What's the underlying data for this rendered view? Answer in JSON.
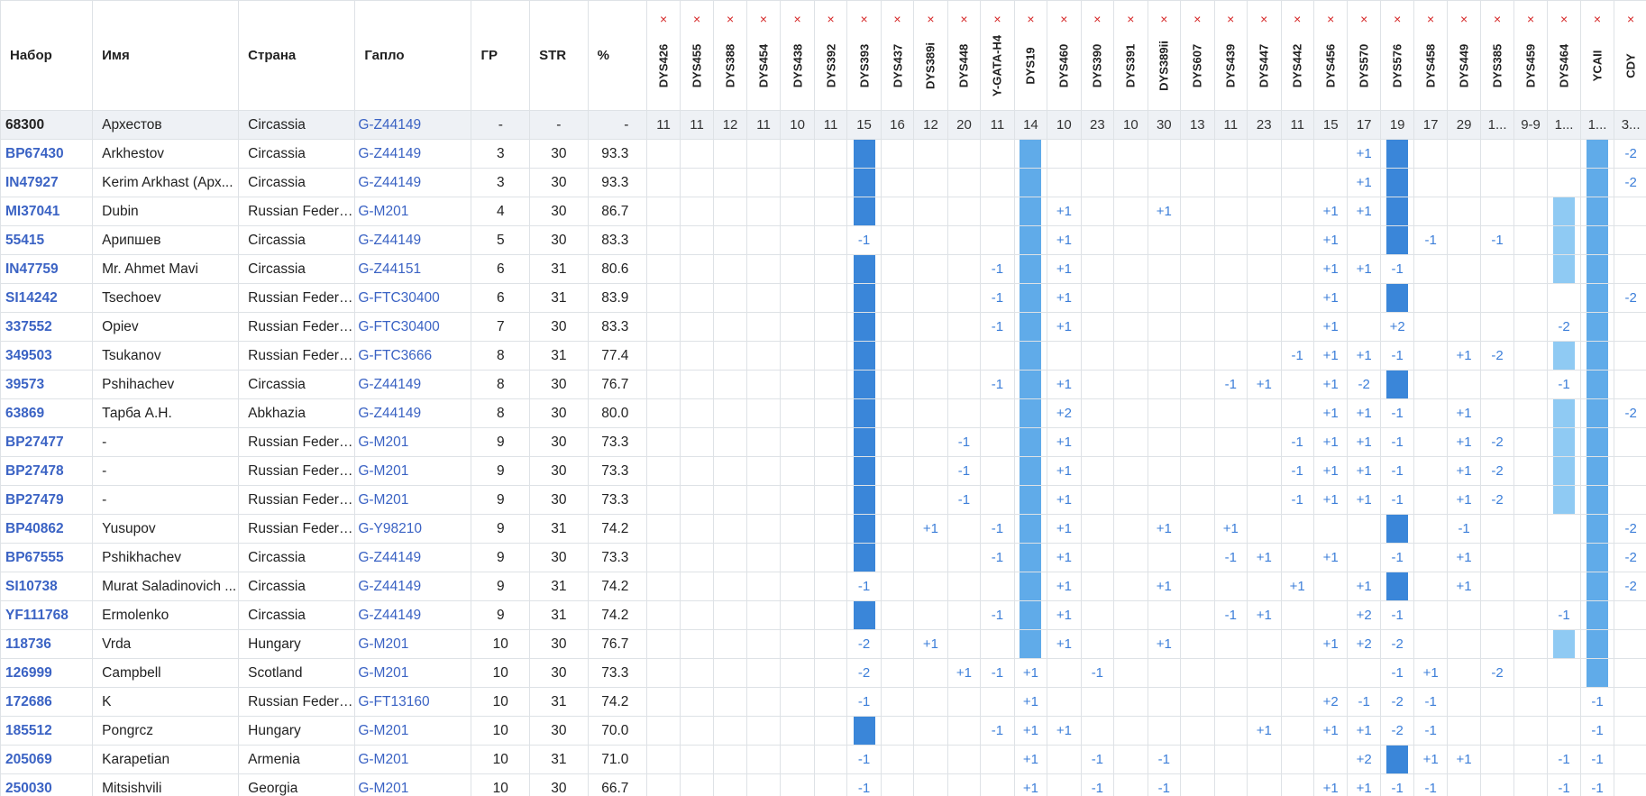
{
  "headers": {
    "kit": "Набор",
    "name": "Имя",
    "country": "Страна",
    "haplo": "Гапло",
    "gd": "ГР",
    "str": "STR",
    "pct": "%"
  },
  "delete_glyph": "×",
  "markers": [
    "DYS426",
    "DYS455",
    "DYS388",
    "DYS454",
    "DYS438",
    "DYS392",
    "DYS393",
    "DYS437",
    "DYS389i",
    "DYS448",
    "Y-GATA-H4",
    "DYS19",
    "DYS460",
    "DYS390",
    "DYS391",
    "DYS389ii",
    "DYS607",
    "DYS439",
    "DYS447",
    "DYS442",
    "DYS456",
    "DYS570",
    "DYS576",
    "DYS458",
    "DYS449",
    "DYS385",
    "DYS459",
    "DYS464",
    "YCAII",
    "CDY"
  ],
  "highlight_colors": {
    "dark": "#3a86d9",
    "mid": "#60abe9",
    "light": "#8fcaf3",
    "ref_row_bg": "#eef1f5",
    "link": "#3b63c4",
    "delete": "#d62828"
  },
  "reference": {
    "kit": "68300",
    "name": "Архестов",
    "country": "Circassia",
    "haplo": "G-Z44149",
    "gd": "-",
    "str": "-",
    "pct": "-",
    "values": [
      "11",
      "11",
      "12",
      "11",
      "10",
      "11",
      "15",
      "16",
      "12",
      "20",
      "11",
      "14",
      "10",
      "23",
      "10",
      "30",
      "13",
      "11",
      "23",
      "11",
      "15",
      "17",
      "19",
      "17",
      "29",
      "1...",
      "9-9",
      "1...",
      "1...",
      "3..."
    ]
  },
  "rows": [
    {
      "kit": "BP67430",
      "name": "Arkhestov",
      "country": "Circassia",
      "haplo": "G-Z44149",
      "gd": "3",
      "str": "30",
      "pct": "93.3",
      "diffs": {
        "DYS570": "+1",
        "CDY": "-2"
      },
      "bars": {
        "DYS393": "dark",
        "DYS19": "mid",
        "DYS576": "dark",
        "YCAII": "mid"
      }
    },
    {
      "kit": "IN47927",
      "name": "Kerim Arkhast (Арх...",
      "country": "Circassia",
      "haplo": "G-Z44149",
      "gd": "3",
      "str": "30",
      "pct": "93.3",
      "diffs": {
        "DYS570": "+1",
        "CDY": "-2"
      },
      "bars": {
        "DYS393": "dark",
        "DYS19": "mid",
        "DYS576": "dark",
        "YCAII": "mid"
      }
    },
    {
      "kit": "MI37041",
      "name": "Dubin",
      "country": "Russian Federa...",
      "haplo": "G-M201",
      "gd": "4",
      "str": "30",
      "pct": "86.7",
      "diffs": {
        "DYS460": "+1",
        "DYS389ii": "+1",
        "DYS456": "+1",
        "DYS570": "+1"
      },
      "bars": {
        "DYS393": "dark",
        "DYS19": "mid",
        "DYS576": "dark",
        "DYS464": "light",
        "YCAII": "mid"
      }
    },
    {
      "kit": "55415",
      "name": "Арипшев",
      "country": "Circassia",
      "haplo": "G-Z44149",
      "gd": "5",
      "str": "30",
      "pct": "83.3",
      "diffs": {
        "DYS393": "-1",
        "DYS460": "+1",
        "DYS456": "+1",
        "DYS458": "-1",
        "DYS385": "-1"
      },
      "bars": {
        "DYS19": "mid",
        "DYS576": "dark",
        "DYS464": "light",
        "YCAII": "mid"
      }
    },
    {
      "kit": "IN47759",
      "name": "Mr. Ahmet Mavi",
      "country": "Circassia",
      "haplo": "G-Z44151",
      "gd": "6",
      "str": "31",
      "pct": "80.6",
      "diffs": {
        "Y-GATA-H4": "-1",
        "DYS460": "+1",
        "DYS456": "+1",
        "DYS570": "+1",
        "DYS576": "-1"
      },
      "bars": {
        "DYS393": "dark",
        "DYS19": "mid",
        "DYS464": "light",
        "YCAII": "mid"
      }
    },
    {
      "kit": "SI14242",
      "name": "Tsechoev",
      "country": "Russian Federa...",
      "haplo": "G-FTC30400",
      "gd": "6",
      "str": "31",
      "pct": "83.9",
      "diffs": {
        "Y-GATA-H4": "-1",
        "DYS460": "+1",
        "DYS456": "+1",
        "CDY": "-2"
      },
      "bars": {
        "DYS393": "dark",
        "DYS19": "mid",
        "DYS576": "dark",
        "YCAII": "mid"
      }
    },
    {
      "kit": "337552",
      "name": "Opiev",
      "country": "Russian Federa...",
      "haplo": "G-FTC30400",
      "gd": "7",
      "str": "30",
      "pct": "83.3",
      "diffs": {
        "Y-GATA-H4": "-1",
        "DYS460": "+1",
        "DYS456": "+1",
        "DYS576": "+2",
        "DYS464": "-2"
      },
      "bars": {
        "DYS393": "dark",
        "DYS19": "mid",
        "YCAII": "mid"
      }
    },
    {
      "kit": "349503",
      "name": "Tsukanov",
      "country": "Russian Federa...",
      "haplo": "G-FTC3666",
      "gd": "8",
      "str": "31",
      "pct": "77.4",
      "diffs": {
        "DYS442": "-1",
        "DYS456": "+1",
        "DYS570": "+1",
        "DYS576": "-1",
        "DYS449": "+1",
        "DYS385": "-2"
      },
      "bars": {
        "DYS393": "dark",
        "DYS19": "mid",
        "DYS464": "light",
        "YCAII": "mid"
      }
    },
    {
      "kit": "39573",
      "name": "Pshihachev",
      "country": "Circassia",
      "haplo": "G-Z44149",
      "gd": "8",
      "str": "30",
      "pct": "76.7",
      "diffs": {
        "Y-GATA-H4": "-1",
        "DYS460": "+1",
        "DYS439": "-1",
        "DYS447": "+1",
        "DYS456": "+1",
        "DYS570": "-2",
        "DYS464": "-1"
      },
      "bars": {
        "DYS393": "dark",
        "DYS19": "mid",
        "DYS576": "dark",
        "YCAII": "mid"
      }
    },
    {
      "kit": "63869",
      "name": "Тарба А.Н.",
      "country": "Abkhazia",
      "haplo": "G-Z44149",
      "gd": "8",
      "str": "30",
      "pct": "80.0",
      "diffs": {
        "DYS460": "+2",
        "DYS456": "+1",
        "DYS570": "+1",
        "DYS576": "-1",
        "DYS449": "+1",
        "CDY": "-2"
      },
      "bars": {
        "DYS393": "dark",
        "DYS19": "mid",
        "DYS464": "light",
        "YCAII": "mid"
      }
    },
    {
      "kit": "BP27477",
      "name": "-",
      "country": "Russian Federa...",
      "haplo": "G-M201",
      "gd": "9",
      "str": "30",
      "pct": "73.3",
      "diffs": {
        "DYS448": "-1",
        "DYS460": "+1",
        "DYS442": "-1",
        "DYS456": "+1",
        "DYS570": "+1",
        "DYS576": "-1",
        "DYS449": "+1",
        "DYS385": "-2"
      },
      "bars": {
        "DYS393": "dark",
        "DYS19": "mid",
        "DYS464": "light",
        "YCAII": "mid"
      }
    },
    {
      "kit": "BP27478",
      "name": "-",
      "country": "Russian Federa...",
      "haplo": "G-M201",
      "gd": "9",
      "str": "30",
      "pct": "73.3",
      "diffs": {
        "DYS448": "-1",
        "DYS460": "+1",
        "DYS442": "-1",
        "DYS456": "+1",
        "DYS570": "+1",
        "DYS576": "-1",
        "DYS449": "+1",
        "DYS385": "-2"
      },
      "bars": {
        "DYS393": "dark",
        "DYS19": "mid",
        "DYS464": "light",
        "YCAII": "mid"
      }
    },
    {
      "kit": "BP27479",
      "name": "-",
      "country": "Russian Federa...",
      "haplo": "G-M201",
      "gd": "9",
      "str": "30",
      "pct": "73.3",
      "diffs": {
        "DYS448": "-1",
        "DYS460": "+1",
        "DYS442": "-1",
        "DYS456": "+1",
        "DYS570": "+1",
        "DYS576": "-1",
        "DYS449": "+1",
        "DYS385": "-2"
      },
      "bars": {
        "DYS393": "dark",
        "DYS19": "mid",
        "DYS464": "light",
        "YCAII": "mid"
      }
    },
    {
      "kit": "BP40862",
      "name": "Yusupov",
      "country": "Russian Federa...",
      "haplo": "G-Y98210",
      "gd": "9",
      "str": "31",
      "pct": "74.2",
      "diffs": {
        "DYS389i": "+1",
        "Y-GATA-H4": "-1",
        "DYS460": "+1",
        "DYS389ii": "+1",
        "DYS439": "+1",
        "DYS449": "-1",
        "CDY": "-2"
      },
      "bars": {
        "DYS393": "dark",
        "DYS19": "mid",
        "DYS576": "dark",
        "YCAII": "mid"
      }
    },
    {
      "kit": "BP67555",
      "name": "Pshikhachev",
      "country": "Circassia",
      "haplo": "G-Z44149",
      "gd": "9",
      "str": "30",
      "pct": "73.3",
      "diffs": {
        "Y-GATA-H4": "-1",
        "DYS460": "+1",
        "DYS439": "-1",
        "DYS447": "+1",
        "DYS456": "+1",
        "DYS576": "-1",
        "DYS449": "+1",
        "CDY": "-2"
      },
      "bars": {
        "DYS393": "dark",
        "DYS19": "mid",
        "YCAII": "mid"
      }
    },
    {
      "kit": "SI10738",
      "name": "Murat Saladinovich ...",
      "country": "Circassia",
      "haplo": "G-Z44149",
      "gd": "9",
      "str": "31",
      "pct": "74.2",
      "diffs": {
        "DYS393": "-1",
        "DYS460": "+1",
        "DYS389ii": "+1",
        "DYS442": "+1",
        "DYS570": "+1",
        "DYS449": "+1",
        "CDY": "-2"
      },
      "bars": {
        "DYS19": "mid",
        "DYS576": "dark",
        "YCAII": "mid"
      }
    },
    {
      "kit": "YF111768",
      "name": "Ermolenko",
      "country": "Circassia",
      "haplo": "G-Z44149",
      "gd": "9",
      "str": "31",
      "pct": "74.2",
      "diffs": {
        "Y-GATA-H4": "-1",
        "DYS460": "+1",
        "DYS439": "-1",
        "DYS447": "+1",
        "DYS570": "+2",
        "DYS576": "-1",
        "DYS464": "-1"
      },
      "bars": {
        "DYS393": "dark",
        "DYS19": "mid",
        "YCAII": "mid"
      }
    },
    {
      "kit": "118736",
      "name": "Vrda",
      "country": "Hungary",
      "haplo": "G-M201",
      "gd": "10",
      "str": "30",
      "pct": "76.7",
      "diffs": {
        "DYS393": "-2",
        "DYS389i": "+1",
        "DYS460": "+1",
        "DYS389ii": "+1",
        "DYS456": "+1",
        "DYS570": "+2",
        "DYS576": "-2"
      },
      "bars": {
        "DYS19": "mid",
        "DYS464": "light",
        "YCAII": "mid"
      }
    },
    {
      "kit": "126999",
      "name": "Campbell",
      "country": "Scotland",
      "haplo": "G-M201",
      "gd": "10",
      "str": "30",
      "pct": "73.3",
      "diffs": {
        "DYS393": "-2",
        "DYS448": "+1",
        "Y-GATA-H4": "-1",
        "DYS19": "+1",
        "DYS390": "-1",
        "DYS576": "-1",
        "DYS458": "+1",
        "DYS385": "-2"
      },
      "bars": {
        "YCAII": "mid"
      }
    },
    {
      "kit": "172686",
      "name": "K",
      "country": "Russian Federa...",
      "haplo": "G-FT13160",
      "gd": "10",
      "str": "31",
      "pct": "74.2",
      "diffs": {
        "DYS393": "-1",
        "DYS19": "+1",
        "DYS456": "+2",
        "DYS570": "-1",
        "DYS576": "-2",
        "DYS458": "-1",
        "YCAII": "-1"
      },
      "bars": {}
    },
    {
      "kit": "185512",
      "name": "Pongrcz",
      "country": "Hungary",
      "haplo": "G-M201",
      "gd": "10",
      "str": "30",
      "pct": "70.0",
      "diffs": {
        "Y-GATA-H4": "-1",
        "DYS19": "+1",
        "DYS460": "+1",
        "DYS447": "+1",
        "DYS456": "+1",
        "DYS570": "+1",
        "DYS576": "-2",
        "DYS458": "-1",
        "YCAII": "-1"
      },
      "bars": {
        "DYS393": "dark"
      }
    },
    {
      "kit": "205069",
      "name": "Karapetian",
      "country": "Armenia",
      "haplo": "G-M201",
      "gd": "10",
      "str": "31",
      "pct": "71.0",
      "diffs": {
        "DYS393": "-1",
        "DYS19": "+1",
        "DYS390": "-1",
        "DYS389ii": "-1",
        "DYS570": "+2",
        "DYS458": "+1",
        "DYS449": "+1",
        "DYS464": "-1",
        "YCAII": "-1"
      },
      "bars": {
        "DYS576": "dark"
      }
    },
    {
      "kit": "250030",
      "name": "Mitsishvili",
      "country": "Georgia",
      "haplo": "G-M201",
      "gd": "10",
      "str": "30",
      "pct": "66.7",
      "diffs": {
        "DYS393": "-1",
        "DYS19": "+1",
        "DYS390": "-1",
        "DYS389ii": "-1",
        "DYS456": "+1",
        "DYS570": "+1",
        "DYS576": "-1",
        "DYS458": "-1",
        "DYS464": "-1",
        "YCAII": "-1"
      },
      "bars": {}
    }
  ]
}
